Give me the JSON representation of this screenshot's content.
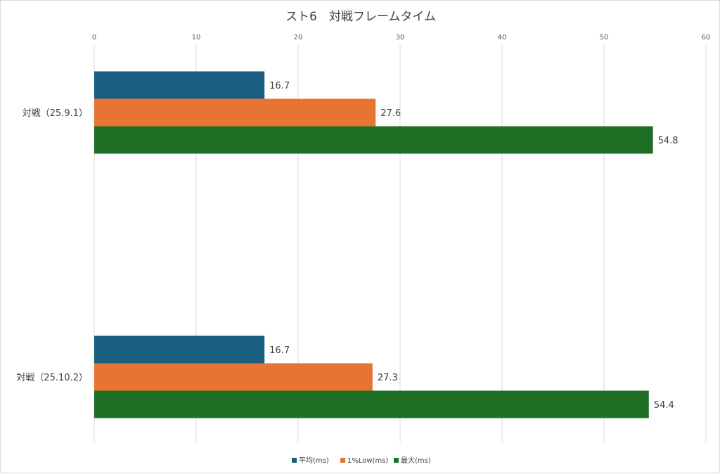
{
  "chart_data": {
    "type": "bar",
    "orientation": "horizontal",
    "title": "スト6　対戦フレームタイム",
    "xlabel": "",
    "ylabel": "",
    "xlim": [
      0,
      60
    ],
    "x_ticks": [
      0,
      10,
      20,
      30,
      40,
      50,
      60
    ],
    "x_axis_position": "top",
    "grid": true,
    "legend_position": "bottom",
    "categories": [
      "対戦（25.9.1）",
      "対戦（25.10.2）"
    ],
    "series": [
      {
        "name": "平均(ms)",
        "color": "#1a5f82",
        "values": [
          16.7,
          16.7
        ]
      },
      {
        "name": "1%Low(ms)",
        "color": "#e87433",
        "values": [
          27.6,
          27.3
        ]
      },
      {
        "name": "最大(ms)",
        "color": "#1e6e26",
        "values": [
          54.8,
          54.4
        ]
      }
    ]
  }
}
